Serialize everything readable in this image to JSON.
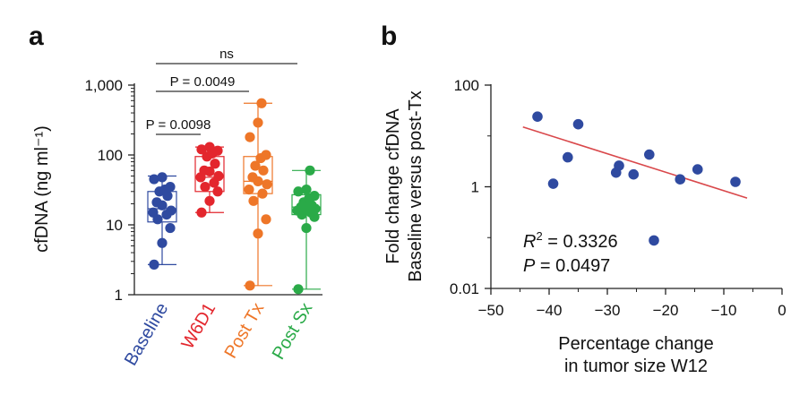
{
  "panel_a_label": "a",
  "panel_b_label": "b",
  "chart_data": [
    {
      "type": "box",
      "panel": "a",
      "ylabel": "cfDNA (ng ml⁻¹)",
      "yscale": "log",
      "ylim": [
        1,
        1000
      ],
      "yticks": [
        1,
        10,
        100,
        1000
      ],
      "ytick_labels": [
        "1",
        "10",
        "100",
        "1,000"
      ],
      "categories": [
        "Baseline",
        "W6D1",
        "Post Tx",
        "Post Sx"
      ],
      "colors": [
        "#2f4aa0",
        "#e3262d",
        "#ee7628",
        "#2aaa48"
      ],
      "boxes": [
        {
          "name": "Baseline",
          "whisker_low": 2.7,
          "q1": 11,
          "median": 17,
          "q3": 30,
          "whisker_high": 50
        },
        {
          "name": "W6D1",
          "whisker_low": 15,
          "q1": 30,
          "median": 48,
          "q3": 95,
          "whisker_high": 130
        },
        {
          "name": "Post Tx",
          "whisker_low": 1.35,
          "q1": 28,
          "median": 42,
          "q3": 95,
          "whisker_high": 550
        },
        {
          "name": "Post Sx",
          "whisker_low": 1.2,
          "q1": 14,
          "median": 18,
          "q3": 27,
          "whisker_high": 60
        }
      ],
      "points": [
        [
          2.7,
          5.5,
          9,
          12,
          14,
          15,
          16,
          19,
          21,
          26,
          30,
          32,
          35,
          45,
          48
        ],
        [
          15,
          22,
          30,
          35,
          40,
          48,
          50,
          58,
          60,
          75,
          95,
          105,
          115,
          120,
          130
        ],
        [
          1.35,
          7.5,
          12,
          22,
          28,
          32,
          38,
          42,
          48,
          60,
          70,
          90,
          100,
          180,
          290,
          550
        ],
        [
          1.2,
          9,
          13,
          14,
          15,
          16,
          17,
          17,
          18,
          19,
          21,
          24,
          26,
          30,
          32,
          60
        ]
      ],
      "comparisons": [
        {
          "from": "Baseline",
          "to": "Post Sx",
          "label": "ns"
        },
        {
          "from": "Baseline",
          "to": "Post Tx",
          "label": "P = 0.0049"
        },
        {
          "from": "Baseline",
          "to": "W6D1",
          "label": "P = 0.0098"
        }
      ]
    },
    {
      "type": "scatter",
      "panel": "b",
      "xlabel": [
        "Percentage change",
        "in tumor size W12"
      ],
      "ylabel": [
        "Fold change cfDNA",
        "Baseline versus post-Tx"
      ],
      "yscale": "log",
      "xlim": [
        -50,
        0
      ],
      "ylim": [
        0.01,
        100
      ],
      "xticks": [
        -50,
        -40,
        -30,
        -20,
        -10,
        0
      ],
      "xtick_labels": [
        "−50",
        "−40",
        "−30",
        "−20",
        "−10",
        "0"
      ],
      "yticks": [
        0.01,
        1,
        100
      ],
      "ytick_labels": [
        "0.01",
        "1",
        "100"
      ],
      "x": [
        -42,
        -39.3,
        -36.8,
        -35,
        -28.5,
        -28,
        -25.5,
        -22.8,
        -22,
        -17.5,
        -14.5,
        -8
      ],
      "y": [
        24,
        1.15,
        3.8,
        17,
        1.9,
        2.6,
        1.75,
        4.3,
        0.088,
        1.4,
        2.2,
        1.25
      ],
      "fit": {
        "x": [
          -44.5,
          -6
        ],
        "y": [
          15,
          0.6
        ],
        "color": "#d9484b"
      },
      "annotations": {
        "r2_label": "R",
        "r2_sup": "2",
        "r2_value": " = 0.3326",
        "p_label": "P",
        "p_value": " = 0.0497"
      },
      "point_color": "#2f4aa0"
    }
  ]
}
